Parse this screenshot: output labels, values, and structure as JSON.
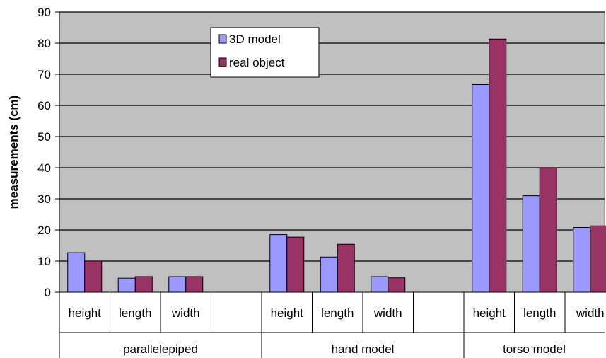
{
  "chart_data": {
    "type": "bar",
    "ylabel": "measurements (cm)",
    "ylim": [
      0,
      90
    ],
    "yticks": [
      0,
      10,
      20,
      30,
      40,
      50,
      60,
      70,
      80,
      90
    ],
    "grid": true,
    "legend_position": "top-center",
    "groups": [
      {
        "label": "parallelepiped",
        "categories": [
          "height",
          "length",
          "width"
        ]
      },
      {
        "label": "hand model",
        "categories": [
          "height",
          "length",
          "width"
        ]
      },
      {
        "label": "torso model",
        "categories": [
          "height",
          "length",
          "width"
        ]
      }
    ],
    "series": [
      {
        "name": "3D model",
        "color": "#9999ff",
        "values": [
          12.7,
          4.5,
          5.0,
          18.5,
          11.3,
          5.0,
          66.7,
          31.0,
          20.8
        ]
      },
      {
        "name": "real object",
        "color": "#993366",
        "values": [
          10.0,
          5.0,
          5.0,
          17.7,
          15.4,
          4.6,
          81.3,
          40.0,
          21.3
        ]
      }
    ]
  }
}
